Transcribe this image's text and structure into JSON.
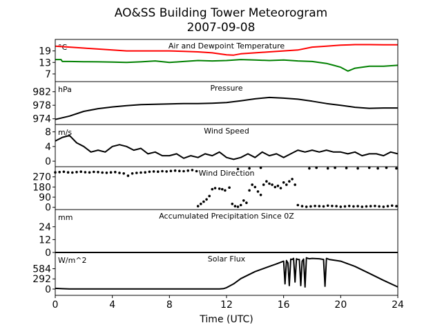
{
  "figure": {
    "title_line1": "AO&SS Building Tower Meteorogram",
    "title_line2": "2007-09-08",
    "xlabel": "Time (UTC)"
  },
  "chart_data": [
    {
      "type": "line",
      "title": "Air and Dewpoint Temperature",
      "unit": "°C",
      "xlim": [
        0,
        24
      ],
      "ylim": [
        3,
        25
      ],
      "yticks": [
        7,
        13,
        19
      ],
      "series": [
        {
          "color": "#ff0000",
          "style": "line",
          "x": [
            0,
            1,
            2,
            3,
            4,
            5,
            6,
            7,
            8,
            9,
            10,
            11,
            12,
            12.5,
            13,
            14,
            15,
            16,
            17,
            18,
            19,
            20,
            21,
            22,
            23,
            24
          ],
          "y": [
            21.5,
            21,
            20.5,
            20,
            19.5,
            19,
            19,
            19,
            19,
            18.8,
            18.5,
            18,
            17,
            16.8,
            17.5,
            18,
            18.5,
            19,
            19.5,
            21,
            21.5,
            22,
            22.3,
            22.3,
            22.2,
            22.2
          ]
        },
        {
          "color": "#008000",
          "style": "line",
          "x": [
            0,
            0.4,
            0.5,
            1,
            2,
            3,
            4,
            5,
            6,
            7,
            8,
            9,
            10,
            11,
            12,
            13,
            14,
            15,
            16,
            17,
            18,
            19,
            19.5,
            20,
            20.5,
            21,
            22,
            23,
            24
          ],
          "y": [
            14.5,
            14.5,
            13.5,
            13.5,
            13.4,
            13.3,
            13.2,
            13,
            13.3,
            13.8,
            13,
            13.5,
            14,
            13.8,
            14,
            14.5,
            14.3,
            14,
            14.3,
            13.8,
            13.5,
            12.5,
            11.5,
            10.5,
            8.5,
            10,
            11,
            11,
            11.5
          ]
        }
      ]
    },
    {
      "type": "line",
      "title": "Pressure",
      "unit": "hPa",
      "xlim": [
        0,
        24
      ],
      "ylim": [
        972.3,
        985
      ],
      "yticks": [
        974,
        978,
        982
      ],
      "series": [
        {
          "color": "#000000",
          "style": "line",
          "x": [
            0,
            1,
            2,
            3,
            4,
            5,
            6,
            7,
            8,
            9,
            10,
            11,
            12,
            13,
            14,
            15,
            16,
            17,
            18,
            19,
            20,
            21,
            22,
            23,
            24
          ],
          "y": [
            973.8,
            974.8,
            976.2,
            977,
            977.5,
            977.9,
            978.2,
            978.3,
            978.4,
            978.5,
            978.5,
            978.6,
            978.8,
            979.3,
            979.9,
            980.3,
            980.1,
            979.8,
            979.2,
            978.5,
            978,
            977.4,
            977.1,
            977.2,
            977.2
          ]
        }
      ]
    },
    {
      "type": "line",
      "title": "Wind Speed",
      "unit": "m/s",
      "xlim": [
        0,
        24
      ],
      "ylim": [
        -1.5,
        10
      ],
      "yticks": [
        0,
        4,
        8
      ],
      "series": [
        {
          "color": "#000000",
          "style": "line",
          "x": [
            0,
            0.5,
            1,
            1.5,
            2,
            2.5,
            3,
            3.5,
            4,
            4.5,
            5,
            5.5,
            6,
            6.5,
            7,
            7.5,
            8,
            8.5,
            9,
            9.5,
            10,
            10.5,
            11,
            11.5,
            12,
            12.5,
            13,
            13.5,
            14,
            14.5,
            15,
            15.5,
            16,
            16.5,
            17,
            17.5,
            18,
            18.5,
            19,
            19.5,
            20,
            20.5,
            21,
            21.5,
            22,
            22.5,
            23,
            23.5,
            24
          ],
          "y": [
            5.5,
            6.5,
            7,
            5,
            4,
            2.5,
            3,
            2.5,
            4,
            4.5,
            4,
            3,
            3.5,
            2,
            2.5,
            1.5,
            1.5,
            2,
            0.8,
            1.5,
            1,
            2,
            1.5,
            2.5,
            1,
            0.5,
            1,
            2,
            1,
            2.5,
            1.5,
            2,
            1,
            2,
            3,
            2.5,
            3,
            2.5,
            3,
            2.5,
            2.5,
            2,
            2.5,
            1.5,
            2,
            2,
            1.5,
            2.5,
            2
          ]
        }
      ]
    },
    {
      "type": "scatter",
      "title": "Wind Direction",
      "unit": "",
      "xlim": [
        0,
        24
      ],
      "ylim": [
        -20,
        360
      ],
      "yticks": [
        0,
        90,
        180,
        270
      ],
      "series": [
        {
          "color": "#000000",
          "style": "markers",
          "x": [
            0,
            0.3,
            0.6,
            0.9,
            1.2,
            1.5,
            1.8,
            2.1,
            2.4,
            2.7,
            3,
            3.3,
            3.6,
            3.9,
            4.2,
            4.5,
            4.8,
            5.1,
            5.4,
            5.7,
            6,
            6.3,
            6.6,
            6.9,
            7.2,
            7.5,
            7.8,
            8.1,
            8.4,
            8.7,
            9,
            9.3,
            9.6,
            9.9,
            10,
            10.2,
            10.4,
            10.6,
            10.8,
            11,
            11.2,
            11.5,
            11.7,
            11.9,
            12.2,
            12.4,
            12.6,
            12.8,
            13,
            13.2,
            13.4,
            13.6,
            13.8,
            14,
            14.2,
            14.4,
            14.6,
            14.8,
            15,
            15.2,
            15.4,
            15.6,
            15.8,
            16,
            16.2,
            16.4,
            16.6,
            16.8,
            17,
            17.3,
            17.6,
            17.9,
            18.2,
            18.5,
            18.8,
            19.1,
            19.4,
            19.7,
            20,
            20.3,
            20.6,
            20.9,
            21.2,
            21.5,
            21.8,
            22.1,
            22.4,
            22.7,
            23,
            23.3,
            23.6,
            23.9,
            17.8,
            18.3,
            19.1,
            19.6,
            20.4,
            21.2,
            22,
            22.6,
            23.2,
            23.9,
            12.8,
            13.6,
            14.4
          ],
          "y": [
            310,
            312,
            315,
            310,
            308,
            312,
            316,
            311,
            309,
            314,
            312,
            308,
            306,
            310,
            312,
            305,
            300,
            280,
            300,
            305,
            308,
            310,
            315,
            318,
            316,
            320,
            318,
            322,
            325,
            322,
            320,
            325,
            330,
            320,
            10,
            30,
            50,
            70,
            100,
            160,
            170,
            165,
            160,
            150,
            175,
            30,
            10,
            5,
            20,
            60,
            40,
            150,
            200,
            180,
            140,
            110,
            200,
            230,
            210,
            200,
            180,
            190,
            170,
            220,
            200,
            230,
            250,
            200,
            20,
            10,
            5,
            8,
            12,
            10,
            8,
            15,
            12,
            10,
            5,
            8,
            12,
            8,
            10,
            5,
            8,
            10,
            12,
            8,
            5,
            10,
            15,
            10,
            345,
            350,
            345,
            350,
            348,
            345,
            350,
            345,
            350,
            345,
            340,
            345,
            350
          ]
        }
      ]
    },
    {
      "type": "line",
      "title": "Accumulated Precipitation Since 0Z",
      "unit": "mm",
      "xlim": [
        0,
        24
      ],
      "ylim": [
        0,
        40
      ],
      "yticks": [
        0,
        12,
        24
      ],
      "series": [
        {
          "color": "#000000",
          "style": "line",
          "x": [
            0,
            24
          ],
          "y": [
            0,
            0
          ]
        }
      ]
    },
    {
      "type": "line",
      "title": "Solar Flux",
      "unit": "W/m^2",
      "xlim": [
        0,
        24
      ],
      "ylim": [
        -180,
        1050
      ],
      "yticks": [
        0,
        292,
        584
      ],
      "series": [
        {
          "color": "#000000",
          "style": "line",
          "x": [
            0,
            0.5,
            1,
            2,
            4,
            6,
            8,
            10,
            11.5,
            11.8,
            12,
            12.5,
            13,
            14,
            15,
            15.5,
            16,
            16.1,
            16.2,
            16.3,
            16.4,
            16.5,
            16.6,
            16.7,
            16.8,
            16.9,
            17,
            17.1,
            17.2,
            17.3,
            17.4,
            17.5,
            17.6,
            17.7,
            17.8,
            18,
            18.5,
            18.8,
            18.9,
            19,
            19.2,
            20,
            21,
            22,
            23,
            24
          ],
          "y": [
            20,
            10,
            5,
            5,
            5,
            5,
            5,
            5,
            5,
            15,
            40,
            150,
            300,
            500,
            650,
            720,
            800,
            150,
            820,
            750,
            100,
            860,
            850,
            880,
            200,
            870,
            850,
            850,
            100,
            800,
            860,
            60,
            900,
            880,
            870,
            880,
            870,
            850,
            80,
            880,
            850,
            800,
            650,
            450,
            250,
            60
          ]
        }
      ]
    }
  ],
  "xaxis": {
    "ticks": [
      0,
      4,
      8,
      12,
      16,
      20,
      24
    ]
  }
}
